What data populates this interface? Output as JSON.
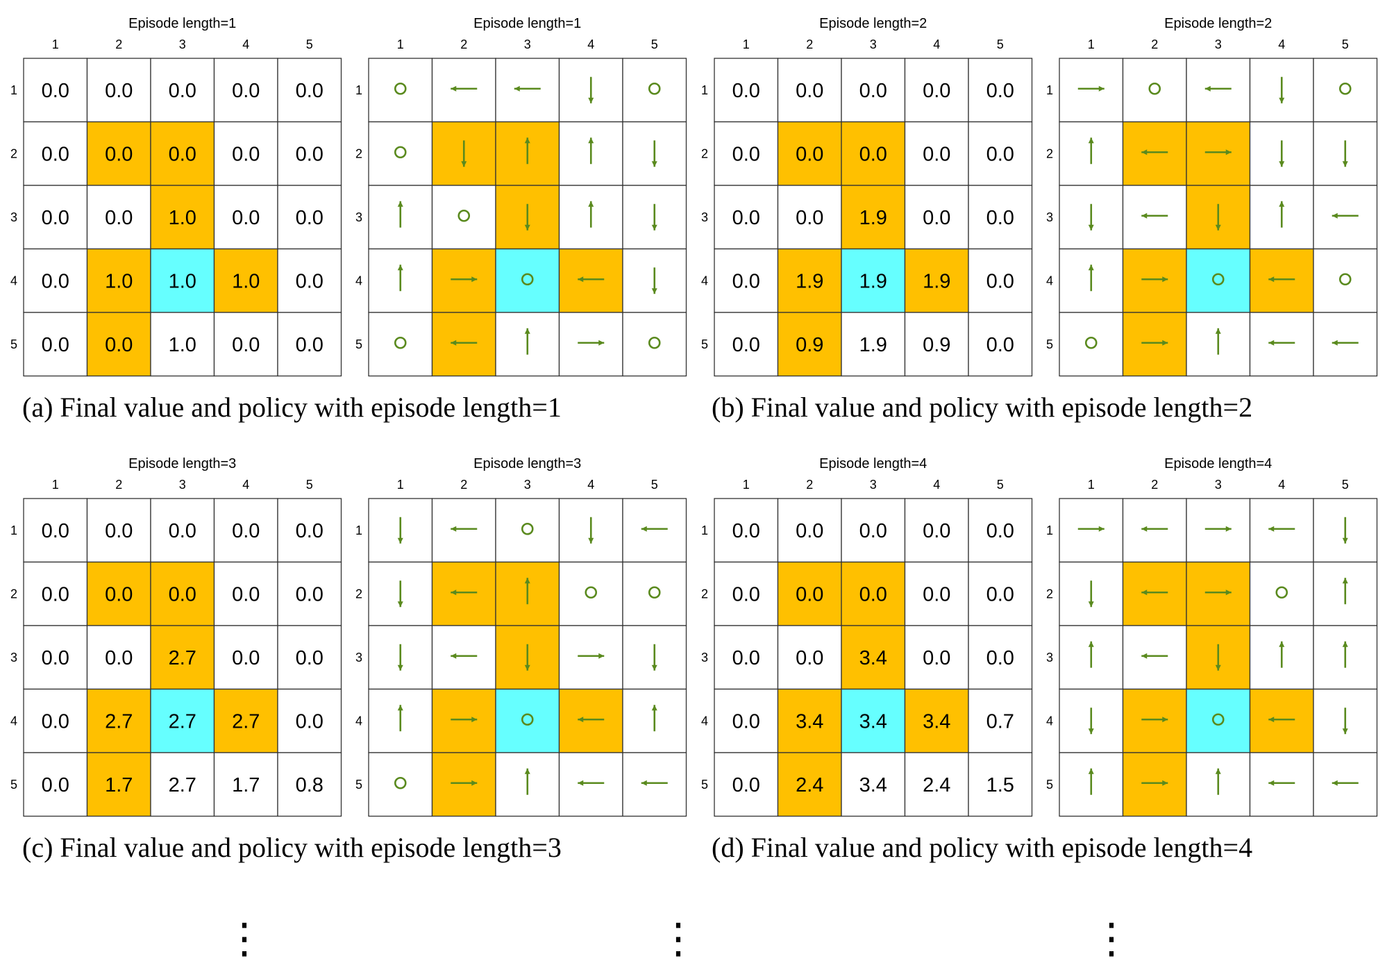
{
  "colors": {
    "forbidden": "#ffc000",
    "target": "#66ffff",
    "arrow": "#5a8a1e",
    "grid": "#333333"
  },
  "grids": [
    {
      "title": "Episode length=1",
      "col_labels": [
        "1",
        "2",
        "3",
        "4",
        "5"
      ],
      "row_labels": [
        "1",
        "2",
        "3",
        "4",
        "5"
      ],
      "values": [
        [
          "0.0",
          "0.0",
          "0.0",
          "0.0",
          "0.0"
        ],
        [
          "0.0",
          "0.0",
          "0.0",
          "0.0",
          "0.0"
        ],
        [
          "0.0",
          "0.0",
          "1.0",
          "0.0",
          "0.0"
        ],
        [
          "0.0",
          "1.0",
          "1.0",
          "1.0",
          "0.0"
        ],
        [
          "0.0",
          "0.0",
          "1.0",
          "0.0",
          "0.0"
        ]
      ]
    },
    {
      "title": "Episode length=1",
      "col_labels": [
        "1",
        "2",
        "3",
        "4",
        "5"
      ],
      "row_labels": [
        "1",
        "2",
        "3",
        "4",
        "5"
      ],
      "policy": [
        [
          "stay",
          "left",
          "left",
          "down",
          "stay"
        ],
        [
          "stay",
          "down",
          "up",
          "up",
          "down"
        ],
        [
          "up",
          "stay",
          "down",
          "up",
          "down"
        ],
        [
          "up",
          "right",
          "stay",
          "left",
          "down"
        ],
        [
          "stay",
          "left",
          "up",
          "right",
          "stay"
        ]
      ]
    },
    {
      "title": "Episode length=2",
      "col_labels": [
        "1",
        "2",
        "3",
        "4",
        "5"
      ],
      "row_labels": [
        "1",
        "2",
        "3",
        "4",
        "5"
      ],
      "values": [
        [
          "0.0",
          "0.0",
          "0.0",
          "0.0",
          "0.0"
        ],
        [
          "0.0",
          "0.0",
          "0.0",
          "0.0",
          "0.0"
        ],
        [
          "0.0",
          "0.0",
          "1.9",
          "0.0",
          "0.0"
        ],
        [
          "0.0",
          "1.9",
          "1.9",
          "1.9",
          "0.0"
        ],
        [
          "0.0",
          "0.9",
          "1.9",
          "0.9",
          "0.0"
        ]
      ]
    },
    {
      "title": "Episode length=2",
      "col_labels": [
        "1",
        "2",
        "3",
        "4",
        "5"
      ],
      "row_labels": [
        "1",
        "2",
        "3",
        "4",
        "5"
      ],
      "policy": [
        [
          "right",
          "stay",
          "left",
          "down",
          "stay"
        ],
        [
          "up",
          "left",
          "right",
          "down",
          "down"
        ],
        [
          "down",
          "left",
          "down",
          "up",
          "left"
        ],
        [
          "up",
          "right",
          "stay",
          "left",
          "stay"
        ],
        [
          "stay",
          "right",
          "up",
          "left",
          "left"
        ]
      ]
    },
    {
      "title": "Episode length=3",
      "col_labels": [
        "1",
        "2",
        "3",
        "4",
        "5"
      ],
      "row_labels": [
        "1",
        "2",
        "3",
        "4",
        "5"
      ],
      "values": [
        [
          "0.0",
          "0.0",
          "0.0",
          "0.0",
          "0.0"
        ],
        [
          "0.0",
          "0.0",
          "0.0",
          "0.0",
          "0.0"
        ],
        [
          "0.0",
          "0.0",
          "2.7",
          "0.0",
          "0.0"
        ],
        [
          "0.0",
          "2.7",
          "2.7",
          "2.7",
          "0.0"
        ],
        [
          "0.0",
          "1.7",
          "2.7",
          "1.7",
          "0.8"
        ]
      ]
    },
    {
      "title": "Episode length=3",
      "col_labels": [
        "1",
        "2",
        "3",
        "4",
        "5"
      ],
      "row_labels": [
        "1",
        "2",
        "3",
        "4",
        "5"
      ],
      "policy": [
        [
          "down",
          "left",
          "stay",
          "down",
          "left"
        ],
        [
          "down",
          "left",
          "up",
          "stay",
          "stay"
        ],
        [
          "down",
          "left",
          "down",
          "right",
          "down"
        ],
        [
          "up",
          "right",
          "stay",
          "left",
          "up"
        ],
        [
          "stay",
          "right",
          "up",
          "left",
          "left"
        ]
      ]
    },
    {
      "title": "Episode length=4",
      "col_labels": [
        "1",
        "2",
        "3",
        "4",
        "5"
      ],
      "row_labels": [
        "1",
        "2",
        "3",
        "4",
        "5"
      ],
      "values": [
        [
          "0.0",
          "0.0",
          "0.0",
          "0.0",
          "0.0"
        ],
        [
          "0.0",
          "0.0",
          "0.0",
          "0.0",
          "0.0"
        ],
        [
          "0.0",
          "0.0",
          "3.4",
          "0.0",
          "0.0"
        ],
        [
          "0.0",
          "3.4",
          "3.4",
          "3.4",
          "0.7"
        ],
        [
          "0.0",
          "2.4",
          "3.4",
          "2.4",
          "1.5"
        ]
      ]
    },
    {
      "title": "Episode length=4",
      "col_labels": [
        "1",
        "2",
        "3",
        "4",
        "5"
      ],
      "row_labels": [
        "1",
        "2",
        "3",
        "4",
        "5"
      ],
      "policy": [
        [
          "right",
          "left",
          "right",
          "left",
          "down"
        ],
        [
          "down",
          "left",
          "right",
          "stay",
          "up"
        ],
        [
          "up",
          "left",
          "down",
          "up",
          "up"
        ],
        [
          "down",
          "right",
          "stay",
          "left",
          "down"
        ],
        [
          "up",
          "right",
          "up",
          "left",
          "left"
        ]
      ]
    }
  ],
  "cell_types": [
    [
      "normal",
      "normal",
      "normal",
      "normal",
      "normal"
    ],
    [
      "normal",
      "forbidden",
      "forbidden",
      "normal",
      "normal"
    ],
    [
      "normal",
      "normal",
      "forbidden",
      "normal",
      "normal"
    ],
    [
      "normal",
      "forbidden",
      "target",
      "forbidden",
      "normal"
    ],
    [
      "normal",
      "forbidden",
      "normal",
      "normal",
      "normal"
    ]
  ],
  "captions": [
    "(a) Final value and policy with episode length=1",
    "(b) Final value and policy with episode length=2",
    "(c) Final value and policy with episode length=3",
    "(d) Final value and policy with episode length=4"
  ],
  "ellipsis": "⋮"
}
